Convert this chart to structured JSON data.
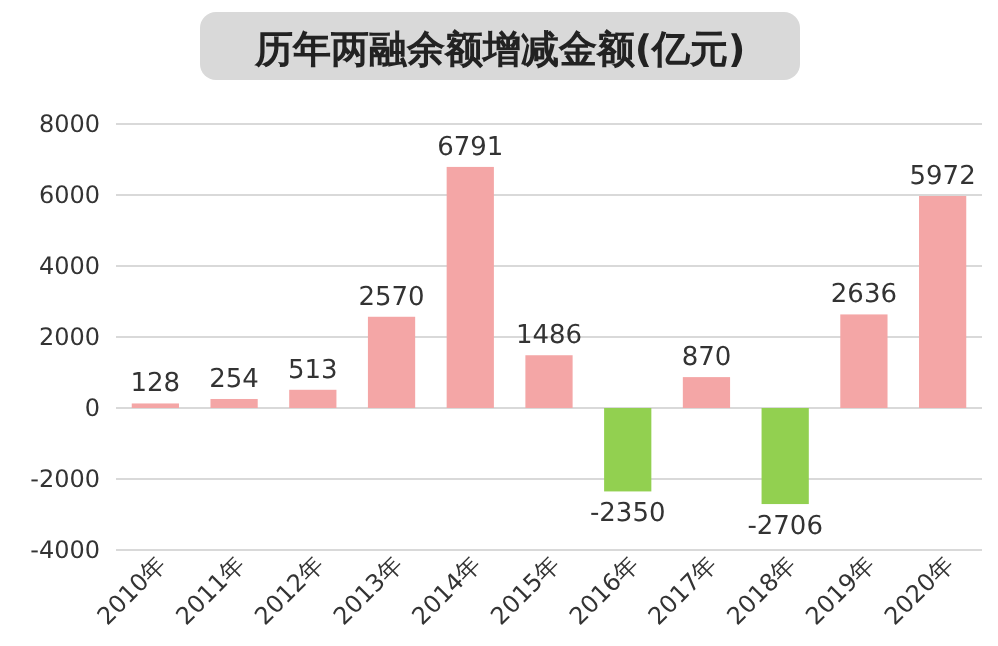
{
  "chart_data": {
    "type": "bar",
    "title": "历年两融余额增减金额(亿元)",
    "categories": [
      "2010年",
      "2011年",
      "2012年",
      "2013年",
      "2014年",
      "2015年",
      "2016年",
      "2017年",
      "2018年",
      "2019年",
      "2020年"
    ],
    "values": [
      128,
      254,
      513,
      2570,
      6791,
      1486,
      -2350,
      870,
      -2706,
      2636,
      5972
    ],
    "colors": [
      "#f4a6a6",
      "#f4a6a6",
      "#f4a6a6",
      "#f4a6a6",
      "#f4a6a6",
      "#f4a6a6",
      "#92d050",
      "#f4a6a6",
      "#92d050",
      "#f4a6a6",
      "#f4a6a6"
    ],
    "ylim": [
      -4000,
      8000
    ],
    "yticks": [
      -4000,
      -2000,
      0,
      2000,
      4000,
      6000,
      8000
    ],
    "grid": "y",
    "data_labels": true
  }
}
